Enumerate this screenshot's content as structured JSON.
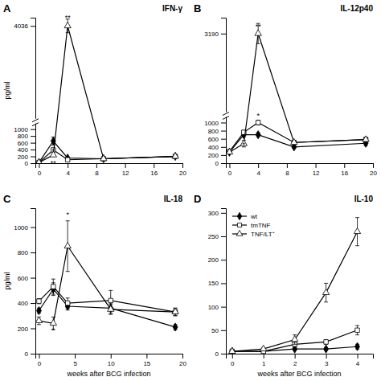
{
  "chart_data": [
    {
      "type": "line",
      "title": "IFN-γ",
      "subtitle": "A",
      "ylabel": "pg/ml",
      "x": [
        0,
        2,
        4,
        9,
        19
      ],
      "xlim": [
        -0.5,
        20
      ],
      "xticks": [
        0,
        4,
        8,
        12,
        16,
        20
      ],
      "ylim": [
        0,
        4278.16
      ],
      "yticks": [
        0,
        200,
        400,
        600,
        800,
        1000,
        4036
      ],
      "series": [
        {
          "color": "#000000",
          "marker": "filled-diamond",
          "values": [
            20,
            650,
            150,
            130,
            200
          ],
          "errors": [
            10,
            120,
            30,
            20,
            20
          ]
        },
        {
          "color": "#000000",
          "marker": "open-square",
          "values": [
            20,
            390,
            100,
            130,
            200
          ],
          "errors": [
            10,
            50,
            20,
            20,
            20
          ]
        },
        {
          "color": "#000000",
          "marker": "open-triangle",
          "values": [
            20,
            240,
            4036,
            130,
            200
          ],
          "errors": [
            10,
            30,
            200,
            30,
            30
          ]
        }
      ],
      "annotations": [
        {
          "text": "**",
          "x": 4,
          "y": 4200
        },
        {
          "text": "*",
          "x": 2,
          "y": 290
        },
        {
          "text": "**",
          "x": 2,
          "y": -80
        }
      ]
    },
    {
      "type": "line",
      "title": "IL-12p40",
      "subtitle": "B",
      "x": [
        0,
        2,
        4,
        9,
        19
      ],
      "xlim": [
        -0.5,
        20
      ],
      "xticks": [
        0,
        4,
        8,
        12,
        16,
        20
      ],
      "ylim": [
        0,
        3581.4
      ],
      "yticks": [
        0,
        200,
        400,
        600,
        800,
        1000,
        3190
      ],
      "series": [
        {
          "color": "#000000",
          "marker": "filled-diamond",
          "values": [
            270,
            700,
            700,
            400,
            490
          ],
          "errors": [
            20,
            50,
            50,
            30,
            60
          ]
        },
        {
          "color": "#000000",
          "marker": "open-square",
          "values": [
            290,
            760,
            1000,
            510,
            580
          ],
          "errors": [
            20,
            50,
            60,
            40,
            50
          ]
        },
        {
          "color": "#000000",
          "marker": "open-triangle",
          "values": [
            270,
            480,
            3190,
            510,
            580
          ],
          "errors": [
            20,
            80,
            250,
            40,
            50
          ]
        }
      ],
      "annotations": [
        {
          "text": "**",
          "x": 4,
          "y": 3300
        },
        {
          "text": "*",
          "x": 4,
          "y": 1100
        },
        {
          "text": "*",
          "x": 2,
          "y": 390
        }
      ]
    },
    {
      "type": "line",
      "title": "IL-18",
      "subtitle": "C",
      "xlabel": "weeks after BCG infection",
      "ylabel": "pg/ml",
      "x": [
        0,
        2,
        4,
        10,
        19
      ],
      "xlim": [
        -0.5,
        20
      ],
      "xticks": [
        0,
        5,
        10,
        15,
        20
      ],
      "ylim": [
        0,
        1150
      ],
      "yticks": [
        0,
        200,
        400,
        600,
        800,
        1000
      ],
      "series": [
        {
          "color": "#000000",
          "marker": "filled-diamond",
          "values": [
            340,
            510,
            375,
            360,
            210
          ],
          "errors": [
            20,
            50,
            30,
            40,
            20
          ]
        },
        {
          "color": "#000000",
          "marker": "open-square",
          "values": [
            415,
            530,
            400,
            420,
            330
          ],
          "errors": [
            20,
            60,
            40,
            80,
            30
          ]
        },
        {
          "color": "#000000",
          "marker": "open-triangle",
          "values": [
            260,
            240,
            850,
            350,
            330
          ],
          "errors": [
            30,
            50,
            200,
            40,
            30
          ]
        }
      ],
      "annotations": [
        {
          "text": "*",
          "x": 4,
          "y": 1080
        },
        {
          "text": "*",
          "x": 2,
          "y": 165
        }
      ]
    },
    {
      "type": "line",
      "title": "IL-10",
      "subtitle": "D",
      "xlabel": "weeks after BCG infection",
      "x": [
        0,
        1,
        2,
        3,
        4
      ],
      "xlim": [
        -0.2,
        4.5
      ],
      "xticks": [
        0,
        1,
        2,
        3,
        4
      ],
      "ylim": [
        0,
        310
      ],
      "yticks": [
        0,
        50,
        100,
        150,
        200,
        250,
        300
      ],
      "legend": "upper left",
      "series": [
        {
          "name": "wt",
          "color": "#000000",
          "marker": "filled-diamond",
          "values": [
            5,
            5,
            10,
            10,
            15
          ],
          "errors": [
            2,
            2,
            3,
            3,
            5
          ]
        },
        {
          "name": "tmTNF",
          "color": "#000000",
          "marker": "open-square",
          "values": [
            5,
            5,
            20,
            25,
            50
          ],
          "errors": [
            2,
            2,
            5,
            5,
            10
          ]
        },
        {
          "name": "TNF/LT⁺",
          "color": "#000000",
          "marker": "open-triangle",
          "values": [
            5,
            10,
            30,
            130,
            260
          ],
          "errors": [
            2,
            3,
            10,
            20,
            30
          ]
        }
      ]
    }
  ]
}
